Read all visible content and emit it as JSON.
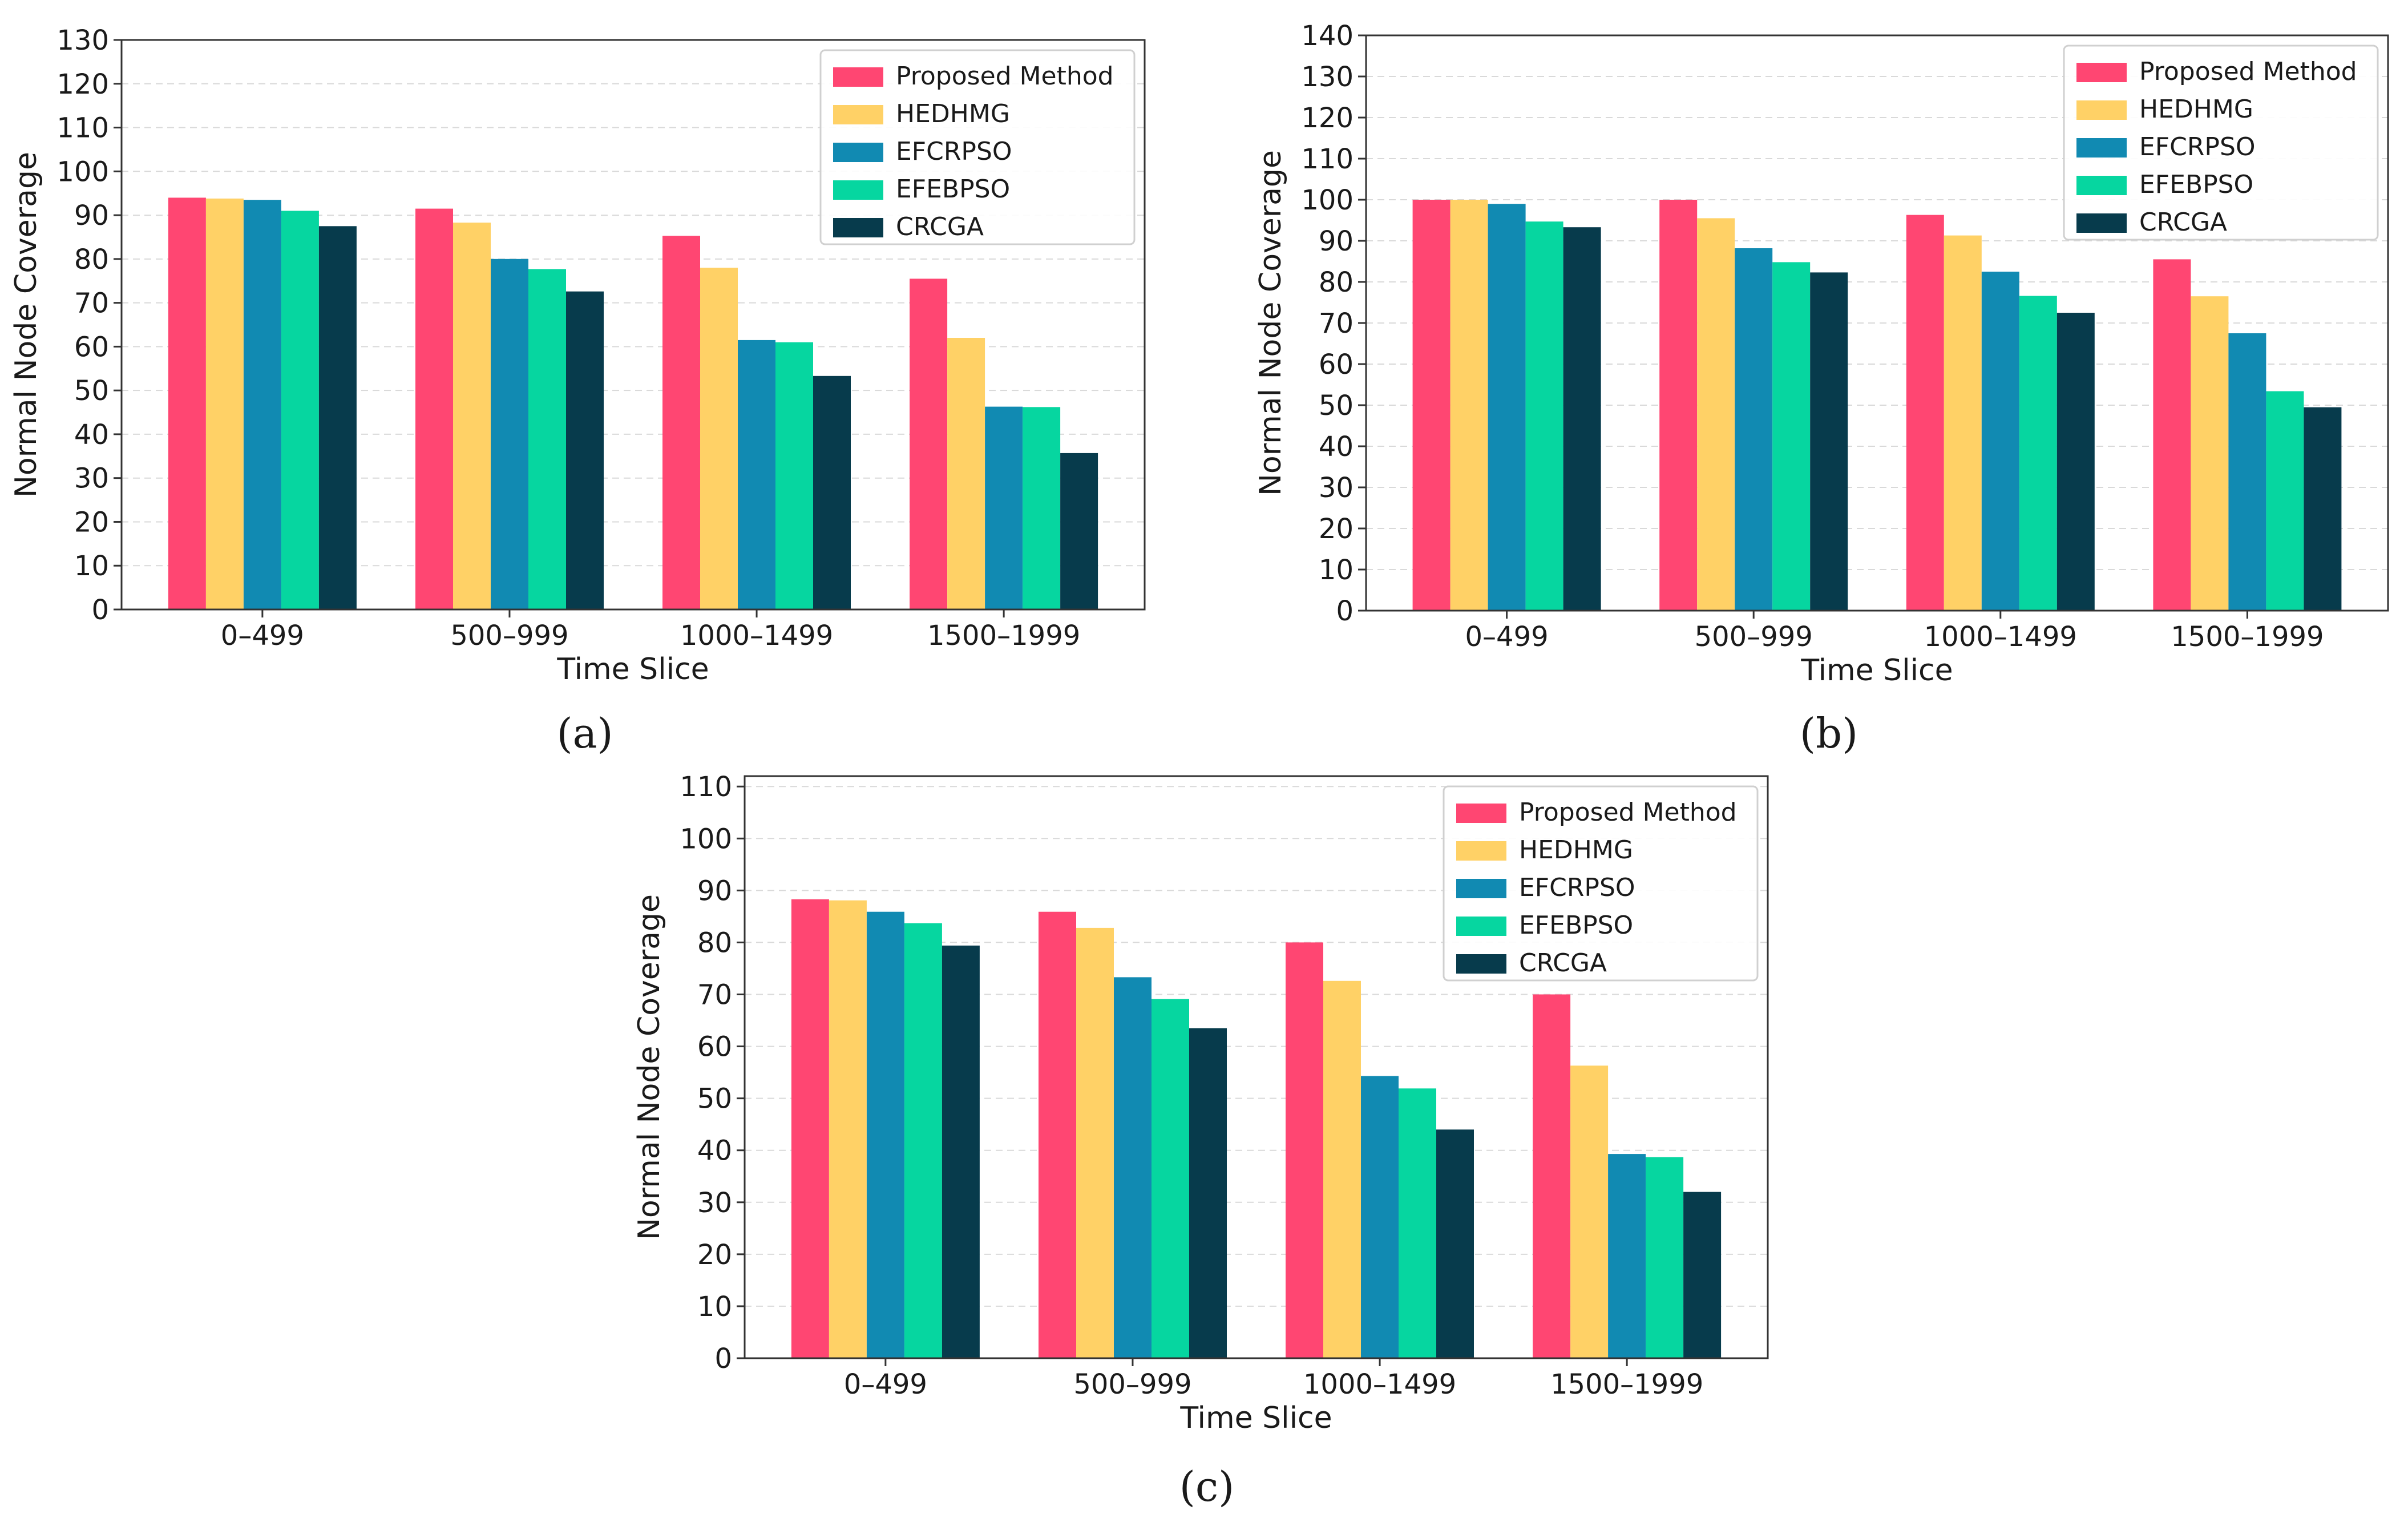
{
  "chart_data": [
    {
      "type": "bar",
      "panel": "(a)",
      "categories": [
        "0–499",
        "500–999",
        "1000–1499",
        "1500–1999"
      ],
      "series": [
        {
          "name": "Proposed Method",
          "values": [
            94,
            91.5,
            85.3,
            75.5
          ]
        },
        {
          "name": "HEDHMG",
          "values": [
            93.8,
            88.3,
            78,
            62
          ]
        },
        {
          "name": "EFCRPSO",
          "values": [
            93.5,
            80,
            61.5,
            46.3
          ]
        },
        {
          "name": "EFEBPSO",
          "values": [
            91,
            77.7,
            61,
            46.2
          ]
        },
        {
          "name": "CRCGA",
          "values": [
            87.5,
            72.6,
            53.3,
            35.7
          ]
        }
      ],
      "xlabel": "Time Slice",
      "ylabel": "Normal Node Coverage",
      "ylim": [
        0,
        130
      ],
      "yticks": [
        0,
        10,
        20,
        30,
        40,
        50,
        60,
        70,
        80,
        90,
        100,
        110,
        120,
        130
      ],
      "grid": true,
      "legend": "top-right"
    },
    {
      "type": "bar",
      "panel": "(b)",
      "categories": [
        "0–499",
        "500–999",
        "1000–1499",
        "1500–1999"
      ],
      "series": [
        {
          "name": "Proposed Method",
          "values": [
            100,
            100,
            96.3,
            85.5
          ]
        },
        {
          "name": "HEDHMG",
          "values": [
            100,
            95.5,
            91.3,
            76.5
          ]
        },
        {
          "name": "EFCRPSO",
          "values": [
            99,
            88.2,
            82.5,
            67.5
          ]
        },
        {
          "name": "EFEBPSO",
          "values": [
            94.7,
            84.8,
            76.6,
            53.4
          ]
        },
        {
          "name": "CRCGA",
          "values": [
            93.3,
            82.3,
            72.5,
            49.5
          ]
        }
      ],
      "xlabel": "Time Slice",
      "ylabel": "Normal Node Coverage",
      "ylim": [
        0,
        140
      ],
      "yticks": [
        0,
        10,
        20,
        30,
        40,
        50,
        60,
        70,
        80,
        90,
        100,
        110,
        120,
        130,
        140
      ],
      "grid": true,
      "legend": "top-right"
    },
    {
      "type": "bar",
      "panel": "(c)",
      "categories": [
        "0–499",
        "500–999",
        "1000–1499",
        "1500–1999"
      ],
      "series": [
        {
          "name": "Proposed Method",
          "values": [
            88.3,
            85.9,
            80,
            70
          ]
        },
        {
          "name": "HEDHMG",
          "values": [
            88.1,
            82.8,
            72.6,
            56.3
          ]
        },
        {
          "name": "EFCRPSO",
          "values": [
            85.9,
            73.3,
            54.3,
            39.3
          ]
        },
        {
          "name": "EFEBPSO",
          "values": [
            83.7,
            69.1,
            51.9,
            38.7
          ]
        },
        {
          "name": "CRCGA",
          "values": [
            79.4,
            63.5,
            44,
            32
          ]
        }
      ],
      "xlabel": "Time Slice",
      "ylabel": "Normal Node Coverage",
      "ylim": [
        0,
        112
      ],
      "yticks": [
        0,
        10,
        20,
        30,
        40,
        50,
        60,
        70,
        80,
        90,
        100,
        110
      ],
      "grid": true,
      "legend": "top-right"
    }
  ],
  "colors": {
    "Proposed Method": "#FF4672",
    "HEDHMG": "#FFD166",
    "EFCRPSO": "#118AB2",
    "EFEBPSO": "#06D6A0",
    "CRCGA": "#073B4C"
  }
}
